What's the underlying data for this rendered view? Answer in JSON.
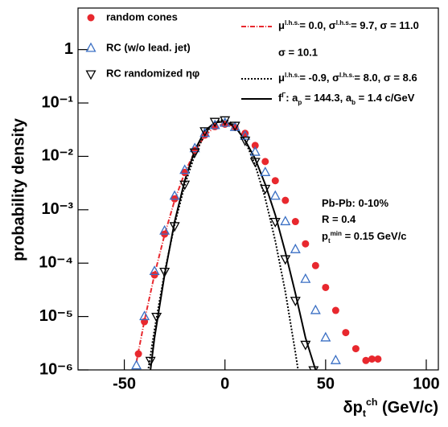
{
  "chart_data": {
    "type": "scatter",
    "ylabel": "probability density",
    "xlabel": [
      {
        "text": "δp"
      },
      {
        "text": "t",
        "shift": "sub"
      },
      {
        "text": "ch",
        "shift": "sup"
      },
      {
        "text": " (GeV/c)"
      }
    ],
    "log_y": true,
    "xlim": [
      -73,
      106
    ],
    "xticks": [
      -50,
      0,
      50,
      100
    ],
    "ylim": [
      1e-06,
      6
    ],
    "yticks": [
      {
        "value": 1e-06,
        "label": "10⁻⁶"
      },
      {
        "value": 1e-05,
        "label": "10⁻⁵"
      },
      {
        "value": 0.0001,
        "label": "10⁻⁴"
      },
      {
        "value": 0.001,
        "label": "10⁻³"
      },
      {
        "value": 0.01,
        "label": "10⁻²"
      },
      {
        "value": 0.1,
        "label": "10⁻¹"
      },
      1
    ],
    "series": [
      {
        "name": "random cones",
        "marker": "circle",
        "color": "#e8282e",
        "x": [
          -43,
          -40,
          -35,
          -30,
          -25,
          -20,
          -15,
          -10,
          -5,
          0,
          5,
          10,
          15,
          20,
          25,
          30,
          35,
          40,
          45,
          50,
          55,
          60,
          65,
          70,
          73,
          76
        ],
        "values": [
          2e-06,
          8e-06,
          6e-05,
          0.00035,
          0.0016,
          0.005,
          0.013,
          0.025,
          0.036,
          0.04,
          0.035,
          0.027,
          0.016,
          0.008,
          0.0035,
          0.0015,
          0.0006,
          0.00023,
          9e-05,
          3.5e-05,
          1.3e-05,
          5e-06,
          2.5e-06,
          1.5e-06,
          1.6e-06,
          1.6e-06
        ]
      },
      {
        "name": "RC (w/o lead. jet)",
        "marker": "triangle",
        "color": "#3a6fc4",
        "x": [
          -44,
          -40,
          -35,
          -30,
          -25,
          -20,
          -15,
          -10,
          -5,
          0,
          5,
          10,
          15,
          20,
          25,
          30,
          35,
          40,
          45,
          50,
          55
        ],
        "values": [
          1.2e-06,
          1e-05,
          7e-05,
          0.0004,
          0.0018,
          0.0055,
          0.014,
          0.027,
          0.038,
          0.042,
          0.035,
          0.024,
          0.012,
          0.005,
          0.0018,
          0.0006,
          0.00018,
          5e-05,
          1.3e-05,
          4e-06,
          1.5e-06
        ]
      },
      {
        "name": "RC randomized ηφ",
        "marker": "triangle-down",
        "color": "#000000",
        "x": [
          -37,
          -34,
          -30,
          -25,
          -20,
          -15,
          -10,
          -5,
          0,
          5,
          10,
          15,
          20,
          25,
          30,
          35,
          40,
          44
        ],
        "values": [
          1.5e-06,
          1e-05,
          7e-05,
          0.0005,
          0.003,
          0.012,
          0.03,
          0.045,
          0.048,
          0.038,
          0.02,
          0.008,
          0.0025,
          0.0006,
          0.00012,
          2e-05,
          3e-06,
          1e-06
        ]
      }
    ],
    "fits": [
      {
        "color": "#e8282e",
        "dash": "6 2 1 2",
        "label": [
          {
            "text": "μ"
          },
          {
            "text": "l.h.s.",
            "shift": "sup"
          },
          {
            "text": "=  0.0, σ"
          },
          {
            "text": "l.h.s.",
            "shift": "sup"
          },
          {
            "text": "= 9.7, σ = 11.0"
          }
        ],
        "x": [
          -44,
          -40,
          -35,
          -30,
          -25,
          -20,
          -15,
          -10,
          -5,
          0,
          5
        ],
        "values": [
          1.4e-06,
          8.4e-06,
          6.1e-05,
          0.00034,
          0.0015,
          0.0049,
          0.0124,
          0.0242,
          0.036,
          0.0411,
          0.036
        ]
      },
      {
        "color": "#000000",
        "dash": "2 2",
        "label": [
          {
            "text": "μ"
          },
          {
            "text": "l.h.s.",
            "shift": "sup"
          },
          {
            "text": "= -0.9, σ"
          },
          {
            "text": "l.h.s.",
            "shift": "sup"
          },
          {
            "text": "= 8.0, σ = 8.6"
          }
        ],
        "x": [
          -38,
          -35,
          -30,
          -25,
          -20,
          -15,
          -10,
          -5,
          0,
          5,
          10,
          15,
          20,
          25,
          30,
          35,
          36.5
        ],
        "values": [
          1.07e-06,
          5.7e-06,
          6.7e-05,
          0.00053,
          0.0029,
          0.0106,
          0.0261,
          0.0438,
          0.0496,
          0.038,
          0.0197,
          0.0069,
          0.00165,
          0.00026,
          2.9e-05,
          2.1e-06,
          9e-07
        ]
      },
      {
        "color": "#000000",
        "dash": "",
        "label": [
          {
            "text": "f"
          },
          {
            "text": "Γ",
            "shift": "sup"
          },
          {
            "text": ": a"
          },
          {
            "text": "p",
            "shift": "sub"
          },
          {
            "text": " = 144.3, a"
          },
          {
            "text": "b",
            "shift": "sub"
          },
          {
            "text": " = 1.4 c/GeV"
          }
        ],
        "x": [
          -37,
          -35,
          -30,
          -25,
          -20,
          -15,
          -10,
          -5,
          0,
          5,
          10,
          15,
          20,
          25,
          30,
          35,
          40,
          45
        ],
        "values": [
          1e-06,
          4e-06,
          6e-05,
          0.0006,
          0.0035,
          0.013,
          0.03,
          0.043,
          0.045,
          0.036,
          0.02,
          0.009,
          0.003,
          0.0008,
          0.00016,
          2.7e-05,
          4e-06,
          1e-06
        ]
      }
    ],
    "sigma_note": "σ = 10.1",
    "annotations": [
      [
        {
          "text": "Pb-Pb: 0-10%"
        }
      ],
      [
        {
          "text": "R = 0.4"
        }
      ],
      [
        {
          "text": "p"
        },
        {
          "text": "t",
          "shift": "sub"
        },
        {
          "text": "min",
          "shift": "sup"
        },
        {
          "text": " = 0.15 GeV/c"
        }
      ]
    ]
  }
}
